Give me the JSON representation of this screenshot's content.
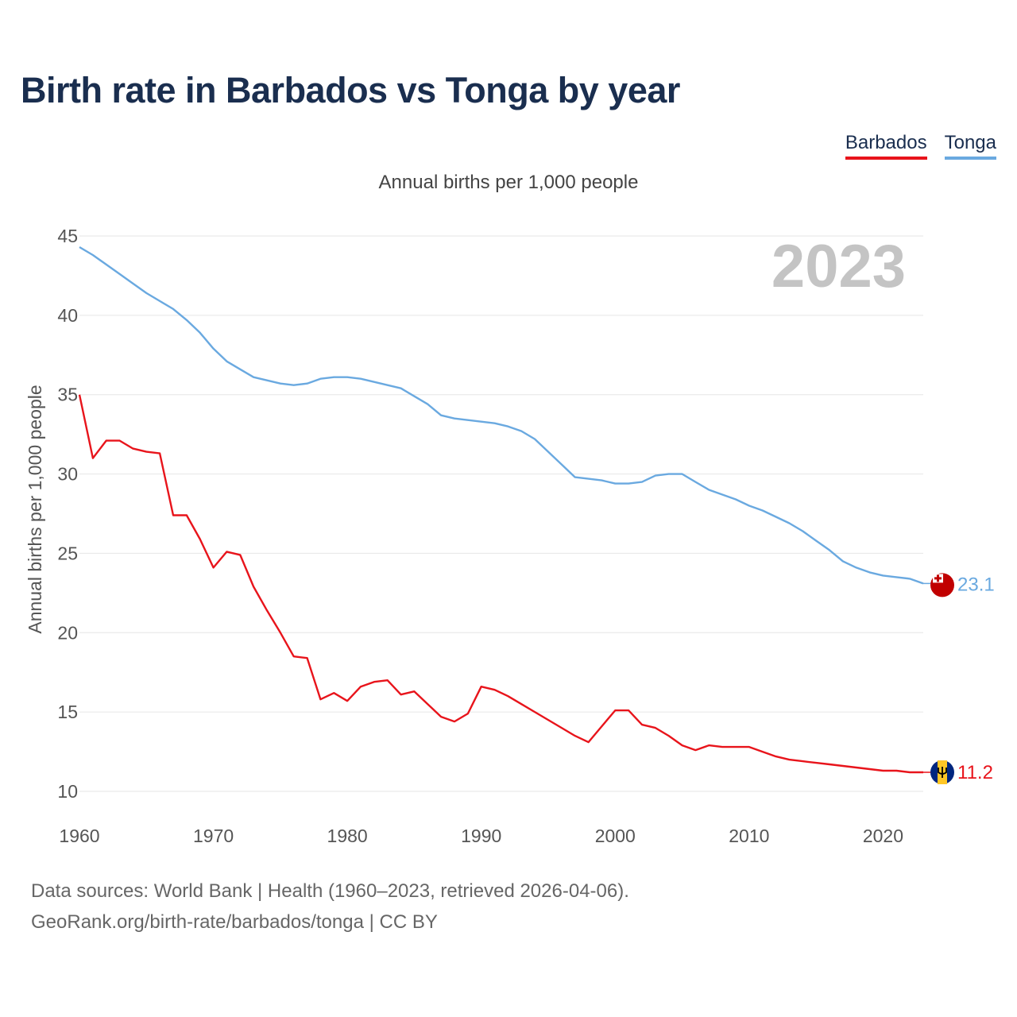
{
  "title": "Birth rate in Barbados vs Tonga by year",
  "subtitle": "Annual births per 1,000 people",
  "legend": {
    "barbados": "Barbados",
    "tonga": "Tonga"
  },
  "colors": {
    "barbados": "#e8141b",
    "tonga": "#6aa9e0",
    "grid": "#e6e6e6",
    "axis_text": "#555555",
    "year_watermark": "#c4c4c4"
  },
  "source_line1": "Data sources: World Bank | Health (1960–2023, retrieved 2026-04-06).",
  "source_line2": "GeoRank.org/birth-rate/barbados/tonga | CC BY",
  "chart_data": {
    "type": "line",
    "title": "Birth rate in Barbados vs Tonga by year",
    "ylabel": "Annual births per 1,000 people",
    "xlabel": "",
    "xlim": [
      1960,
      2023
    ],
    "ylim": [
      10,
      45
    ],
    "x_ticks": [
      1960,
      1970,
      1980,
      1990,
      2000,
      2010,
      2020
    ],
    "y_ticks": [
      10,
      15,
      20,
      25,
      30,
      35,
      40,
      45
    ],
    "grid": true,
    "legend_position": "top-right",
    "year_label": "2023",
    "end_labels": {
      "barbados": "11.2",
      "tonga": "23.1"
    },
    "x": [
      1960,
      1961,
      1962,
      1963,
      1964,
      1965,
      1966,
      1967,
      1968,
      1969,
      1970,
      1971,
      1972,
      1973,
      1974,
      1975,
      1976,
      1977,
      1978,
      1979,
      1980,
      1981,
      1982,
      1983,
      1984,
      1985,
      1986,
      1987,
      1988,
      1989,
      1990,
      1991,
      1992,
      1993,
      1994,
      1995,
      1996,
      1997,
      1998,
      1999,
      2000,
      2001,
      2002,
      2003,
      2004,
      2005,
      2006,
      2007,
      2008,
      2009,
      2010,
      2011,
      2012,
      2013,
      2014,
      2015,
      2016,
      2017,
      2018,
      2019,
      2020,
      2021,
      2022,
      2023
    ],
    "series": [
      {
        "name": "Barbados",
        "key": "barbados",
        "values": [
          35.0,
          31.0,
          32.1,
          32.1,
          31.6,
          31.4,
          31.3,
          27.4,
          27.4,
          25.9,
          24.1,
          25.1,
          24.9,
          22.9,
          21.4,
          20.0,
          18.5,
          18.4,
          15.8,
          16.2,
          15.7,
          16.6,
          16.9,
          17.0,
          16.1,
          16.3,
          15.5,
          14.7,
          14.4,
          14.9,
          16.6,
          16.4,
          16.0,
          15.5,
          15.0,
          14.5,
          14.0,
          13.5,
          13.1,
          14.1,
          15.1,
          15.1,
          14.2,
          14.0,
          13.5,
          12.9,
          12.6,
          12.9,
          12.8,
          12.8,
          12.8,
          12.5,
          12.2,
          12.0,
          11.9,
          11.8,
          11.7,
          11.6,
          11.5,
          11.4,
          11.3,
          11.3,
          11.2,
          11.2
        ]
      },
      {
        "name": "Tonga",
        "key": "tonga",
        "values": [
          44.3,
          43.8,
          43.2,
          42.6,
          42.0,
          41.4,
          40.9,
          40.4,
          39.7,
          38.9,
          37.9,
          37.1,
          36.6,
          36.1,
          35.9,
          35.7,
          35.6,
          35.7,
          36.0,
          36.1,
          36.1,
          36.0,
          35.8,
          35.6,
          35.4,
          34.9,
          34.4,
          33.7,
          33.5,
          33.4,
          33.3,
          33.2,
          33.0,
          32.7,
          32.2,
          31.4,
          30.6,
          29.8,
          29.7,
          29.6,
          29.4,
          29.4,
          29.5,
          29.9,
          30.0,
          30.0,
          29.5,
          29.0,
          28.7,
          28.4,
          28.0,
          27.7,
          27.3,
          26.9,
          26.4,
          25.8,
          25.2,
          24.5,
          24.1,
          23.8,
          23.6,
          23.5,
          23.4,
          23.1
        ]
      }
    ]
  }
}
